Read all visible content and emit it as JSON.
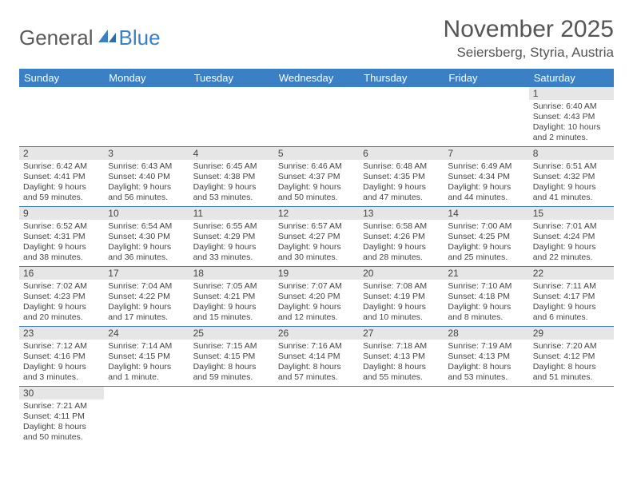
{
  "logo": {
    "general": "General",
    "blue": "Blue"
  },
  "title": "November 2025",
  "location": "Seiersberg, Styria, Austria",
  "dayHeaders": [
    "Sunday",
    "Monday",
    "Tuesday",
    "Wednesday",
    "Thursday",
    "Friday",
    "Saturday"
  ],
  "colors": {
    "headerBg": "#3b7fc4",
    "headerText": "#ffffff",
    "dayBarBg": "#e6e6e6",
    "borderColor": "#3b7fc4",
    "bodyText": "#444444",
    "titleText": "#555555"
  },
  "typography": {
    "titleFontSize": 30,
    "locationFontSize": 17,
    "headerFontSize": 13,
    "dayNumFontSize": 12,
    "cellFontSize": 10.5
  },
  "layout": {
    "columns": 7,
    "rows": 6,
    "firstDayOffset": 6
  },
  "days": [
    {
      "n": 1,
      "sr": "6:40 AM",
      "ss": "4:43 PM",
      "dl": "10 hours and 2 minutes."
    },
    {
      "n": 2,
      "sr": "6:42 AM",
      "ss": "4:41 PM",
      "dl": "9 hours and 59 minutes."
    },
    {
      "n": 3,
      "sr": "6:43 AM",
      "ss": "4:40 PM",
      "dl": "9 hours and 56 minutes."
    },
    {
      "n": 4,
      "sr": "6:45 AM",
      "ss": "4:38 PM",
      "dl": "9 hours and 53 minutes."
    },
    {
      "n": 5,
      "sr": "6:46 AM",
      "ss": "4:37 PM",
      "dl": "9 hours and 50 minutes."
    },
    {
      "n": 6,
      "sr": "6:48 AM",
      "ss": "4:35 PM",
      "dl": "9 hours and 47 minutes."
    },
    {
      "n": 7,
      "sr": "6:49 AM",
      "ss": "4:34 PM",
      "dl": "9 hours and 44 minutes."
    },
    {
      "n": 8,
      "sr": "6:51 AM",
      "ss": "4:32 PM",
      "dl": "9 hours and 41 minutes."
    },
    {
      "n": 9,
      "sr": "6:52 AM",
      "ss": "4:31 PM",
      "dl": "9 hours and 38 minutes."
    },
    {
      "n": 10,
      "sr": "6:54 AM",
      "ss": "4:30 PM",
      "dl": "9 hours and 36 minutes."
    },
    {
      "n": 11,
      "sr": "6:55 AM",
      "ss": "4:29 PM",
      "dl": "9 hours and 33 minutes."
    },
    {
      "n": 12,
      "sr": "6:57 AM",
      "ss": "4:27 PM",
      "dl": "9 hours and 30 minutes."
    },
    {
      "n": 13,
      "sr": "6:58 AM",
      "ss": "4:26 PM",
      "dl": "9 hours and 28 minutes."
    },
    {
      "n": 14,
      "sr": "7:00 AM",
      "ss": "4:25 PM",
      "dl": "9 hours and 25 minutes."
    },
    {
      "n": 15,
      "sr": "7:01 AM",
      "ss": "4:24 PM",
      "dl": "9 hours and 22 minutes."
    },
    {
      "n": 16,
      "sr": "7:02 AM",
      "ss": "4:23 PM",
      "dl": "9 hours and 20 minutes."
    },
    {
      "n": 17,
      "sr": "7:04 AM",
      "ss": "4:22 PM",
      "dl": "9 hours and 17 minutes."
    },
    {
      "n": 18,
      "sr": "7:05 AM",
      "ss": "4:21 PM",
      "dl": "9 hours and 15 minutes."
    },
    {
      "n": 19,
      "sr": "7:07 AM",
      "ss": "4:20 PM",
      "dl": "9 hours and 12 minutes."
    },
    {
      "n": 20,
      "sr": "7:08 AM",
      "ss": "4:19 PM",
      "dl": "9 hours and 10 minutes."
    },
    {
      "n": 21,
      "sr": "7:10 AM",
      "ss": "4:18 PM",
      "dl": "9 hours and 8 minutes."
    },
    {
      "n": 22,
      "sr": "7:11 AM",
      "ss": "4:17 PM",
      "dl": "9 hours and 6 minutes."
    },
    {
      "n": 23,
      "sr": "7:12 AM",
      "ss": "4:16 PM",
      "dl": "9 hours and 3 minutes."
    },
    {
      "n": 24,
      "sr": "7:14 AM",
      "ss": "4:15 PM",
      "dl": "9 hours and 1 minute."
    },
    {
      "n": 25,
      "sr": "7:15 AM",
      "ss": "4:15 PM",
      "dl": "8 hours and 59 minutes."
    },
    {
      "n": 26,
      "sr": "7:16 AM",
      "ss": "4:14 PM",
      "dl": "8 hours and 57 minutes."
    },
    {
      "n": 27,
      "sr": "7:18 AM",
      "ss": "4:13 PM",
      "dl": "8 hours and 55 minutes."
    },
    {
      "n": 28,
      "sr": "7:19 AM",
      "ss": "4:13 PM",
      "dl": "8 hours and 53 minutes."
    },
    {
      "n": 29,
      "sr": "7:20 AM",
      "ss": "4:12 PM",
      "dl": "8 hours and 51 minutes."
    },
    {
      "n": 30,
      "sr": "7:21 AM",
      "ss": "4:11 PM",
      "dl": "8 hours and 50 minutes."
    }
  ],
  "labels": {
    "sunrise": "Sunrise:",
    "sunset": "Sunset:",
    "daylight": "Daylight:"
  }
}
